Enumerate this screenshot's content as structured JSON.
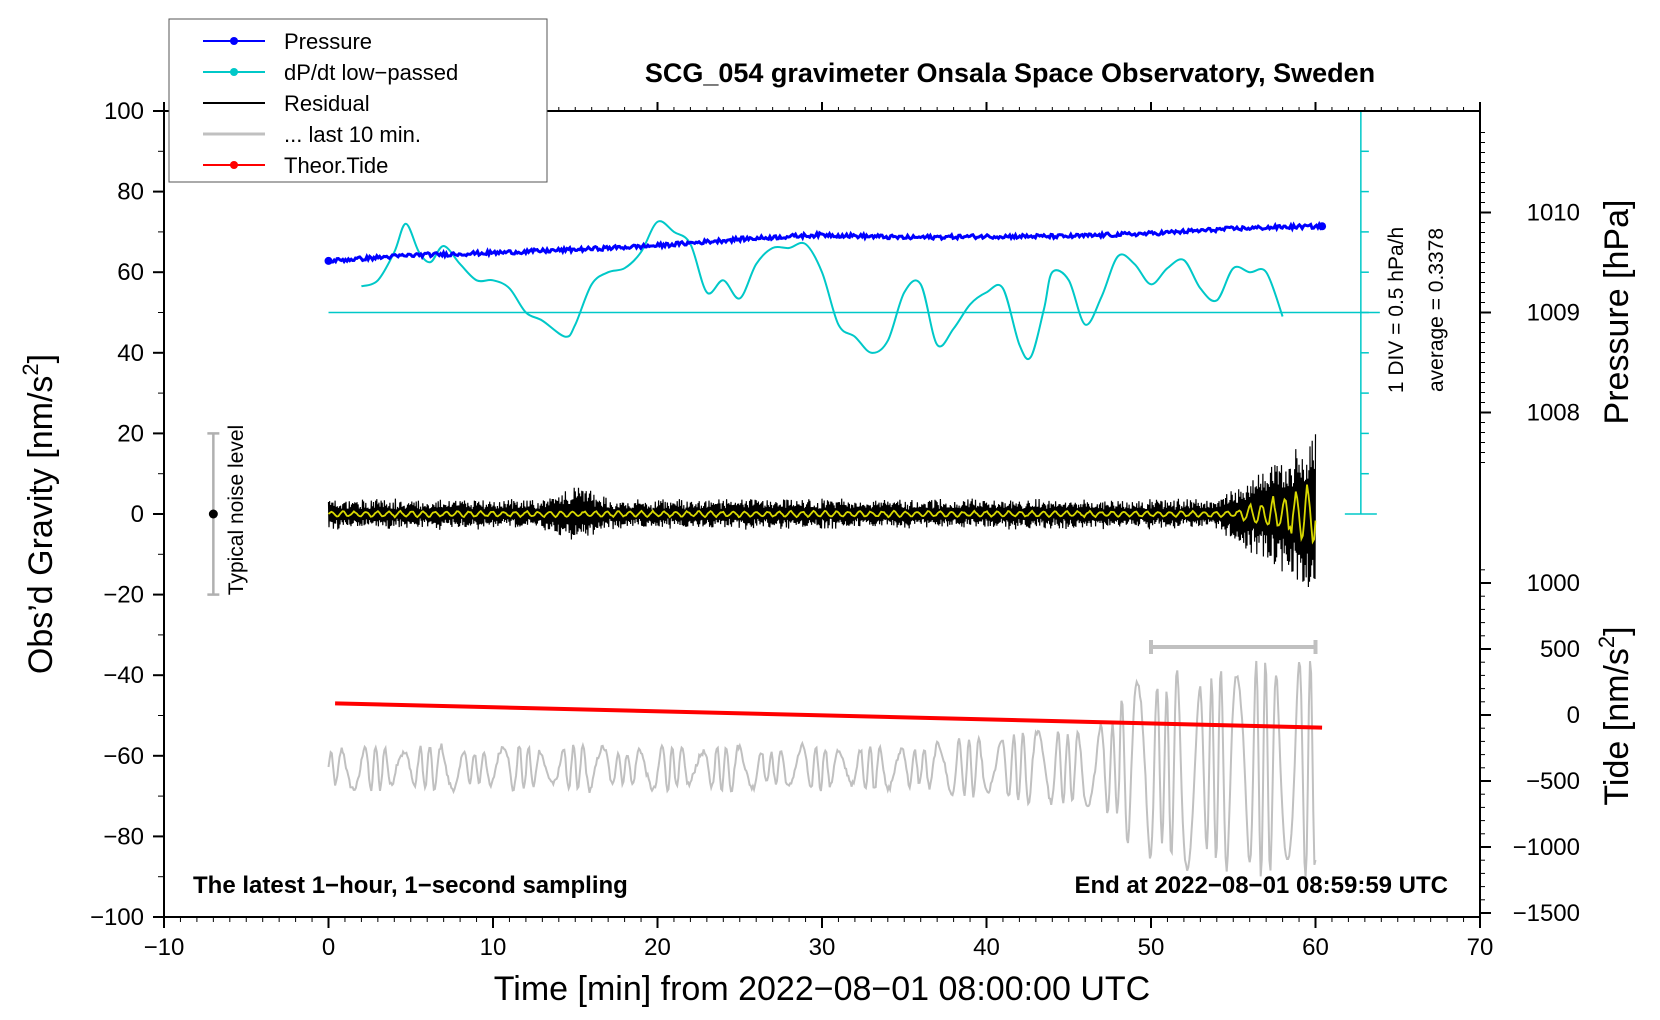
{
  "chart_data": {
    "type": "line",
    "title": "SCG_054 gravimeter Onsala Space Observatory, Sweden",
    "xlabel": "Time [min] from 2022−08−01 08:00:00 UTC",
    "ylabel_left": "Obs’d Gravity [nm/s",
    "ylabel_left_sup": "2",
    "ylabel_left_end": "]",
    "ylabel_right_pressure": "Pressure [hPa]",
    "ylabel_right_tide": "Tide [nm/s",
    "ylabel_right_tide_sup": "2",
    "ylabel_right_tide_end": "]",
    "xlim": [
      -10,
      70
    ],
    "ylim_left": [
      -100,
      100
    ],
    "x_ticks": [
      -10,
      0,
      10,
      20,
      30,
      40,
      50,
      60,
      70
    ],
    "x_tick_labels": [
      "−10",
      "0",
      "10",
      "20",
      "30",
      "40",
      "50",
      "60",
      "70"
    ],
    "y_ticks_left": [
      100,
      80,
      60,
      40,
      20,
      0,
      -20,
      -40,
      -60,
      -80,
      -100
    ],
    "y_tick_labels_left": [
      "100",
      "80",
      "60",
      "40",
      "20",
      "0",
      "−20",
      "−40",
      "−60",
      "−80",
      "−100"
    ],
    "pressure_axis": {
      "ticks": [
        1010,
        1009,
        1008
      ],
      "labels": [
        "1010",
        "1009",
        "1008"
      ]
    },
    "tide_axis": {
      "ticks": [
        1000,
        500,
        0,
        -500,
        -1000,
        -1500
      ],
      "labels": [
        "1000",
        "500",
        "0",
        "−500",
        "−1000",
        "−1500"
      ]
    },
    "legend": [
      {
        "label": "Pressure",
        "color": "#0000ff",
        "marker": "dot"
      },
      {
        "label": "dP/dt low−passed",
        "color": "#00c8c8",
        "marker": "dot"
      },
      {
        "label": "Residual",
        "color": "#000000",
        "marker": "none"
      },
      {
        "label": "... last 10 min.",
        "color": "#c0c0c0",
        "marker": "none"
      },
      {
        "label": "Theor.Tide",
        "color": "#ff0000",
        "marker": "dot"
      }
    ],
    "notes": {
      "bottom_left": "The latest 1−hour, 1−second sampling",
      "bottom_right": "End at 2022−08−01 08:59:59 UTC",
      "noise_label": "Typical noise level",
      "div_label": "1 DIV = 0.5 hPa/h",
      "average_label": "average = 0.3378"
    },
    "noise_bar": {
      "x": -7,
      "y_min": -20,
      "y_max": 20,
      "center": 0
    },
    "dpdt_reference": {
      "y": 50,
      "x_start": 0,
      "x_end": 63
    },
    "dpdt_scale_bar": {
      "x": 63,
      "y_min": 0,
      "y_max": 100,
      "divisions": 10
    },
    "last10_bar": {
      "x_start": 50,
      "x_end": 60,
      "y": -33
    },
    "series": [
      {
        "name": "Pressure",
        "color": "#0000ff",
        "noise": 0.5,
        "x": [
          0,
          5,
          10,
          15,
          20,
          25,
          30,
          35,
          40,
          45,
          50,
          55,
          58,
          60.4
        ],
        "y": [
          62.8,
          64.2,
          64.8,
          65.6,
          66.6,
          68.2,
          69.3,
          68.6,
          68.9,
          68.9,
          69.6,
          70.8,
          71.2,
          71.4
        ]
      },
      {
        "name": "dP/dt low-passed",
        "color": "#00c8c8",
        "x": [
          2,
          3,
          4,
          4.7,
          5.5,
          6.2,
          7,
          8,
          9,
          10,
          11,
          12,
          13,
          14.4,
          15,
          16,
          17,
          18,
          19,
          20,
          21,
          22,
          23,
          24,
          25,
          26,
          27,
          28,
          29,
          30,
          31,
          32,
          33,
          34,
          35,
          36,
          37,
          38,
          39,
          40,
          41,
          42,
          42.7,
          43.5,
          44,
          45,
          46,
          47,
          48,
          49,
          50,
          51,
          52,
          53,
          54,
          55,
          56,
          57,
          58
        ],
        "y": [
          56.5,
          58,
          65,
          72,
          65,
          62.5,
          66.5,
          62,
          58,
          58,
          56,
          50,
          48,
          44,
          47,
          57,
          60,
          61,
          65,
          72.5,
          70,
          67,
          55,
          58,
          53.5,
          62,
          66,
          66,
          67,
          60,
          47,
          44,
          40,
          43,
          55,
          57,
          42,
          46,
          52,
          55,
          56,
          42,
          39,
          51,
          60,
          58,
          47,
          54,
          64,
          62,
          57,
          61,
          63,
          56,
          53,
          61,
          60,
          60,
          49
        ]
      },
      {
        "name": "Residual",
        "color": "#000000",
        "x_range": [
          0,
          60
        ],
        "envelope": "grows to ±20 near the end"
      },
      {
        "name": "Residual (smoothed)",
        "color": "#d8d800",
        "x_range": [
          0,
          60
        ]
      },
      {
        "name": "Theor.Tide",
        "color": "#ff0000",
        "x": [
          0.4,
          60.4
        ],
        "y": [
          -47,
          -53
        ]
      },
      {
        "name": "... last 10 min.",
        "color": "#c0c0c0",
        "x_range": [
          0,
          60
        ],
        "baseline": -63,
        "envelope": "±3 early, up to ±20 after minute 48"
      }
    ]
  }
}
